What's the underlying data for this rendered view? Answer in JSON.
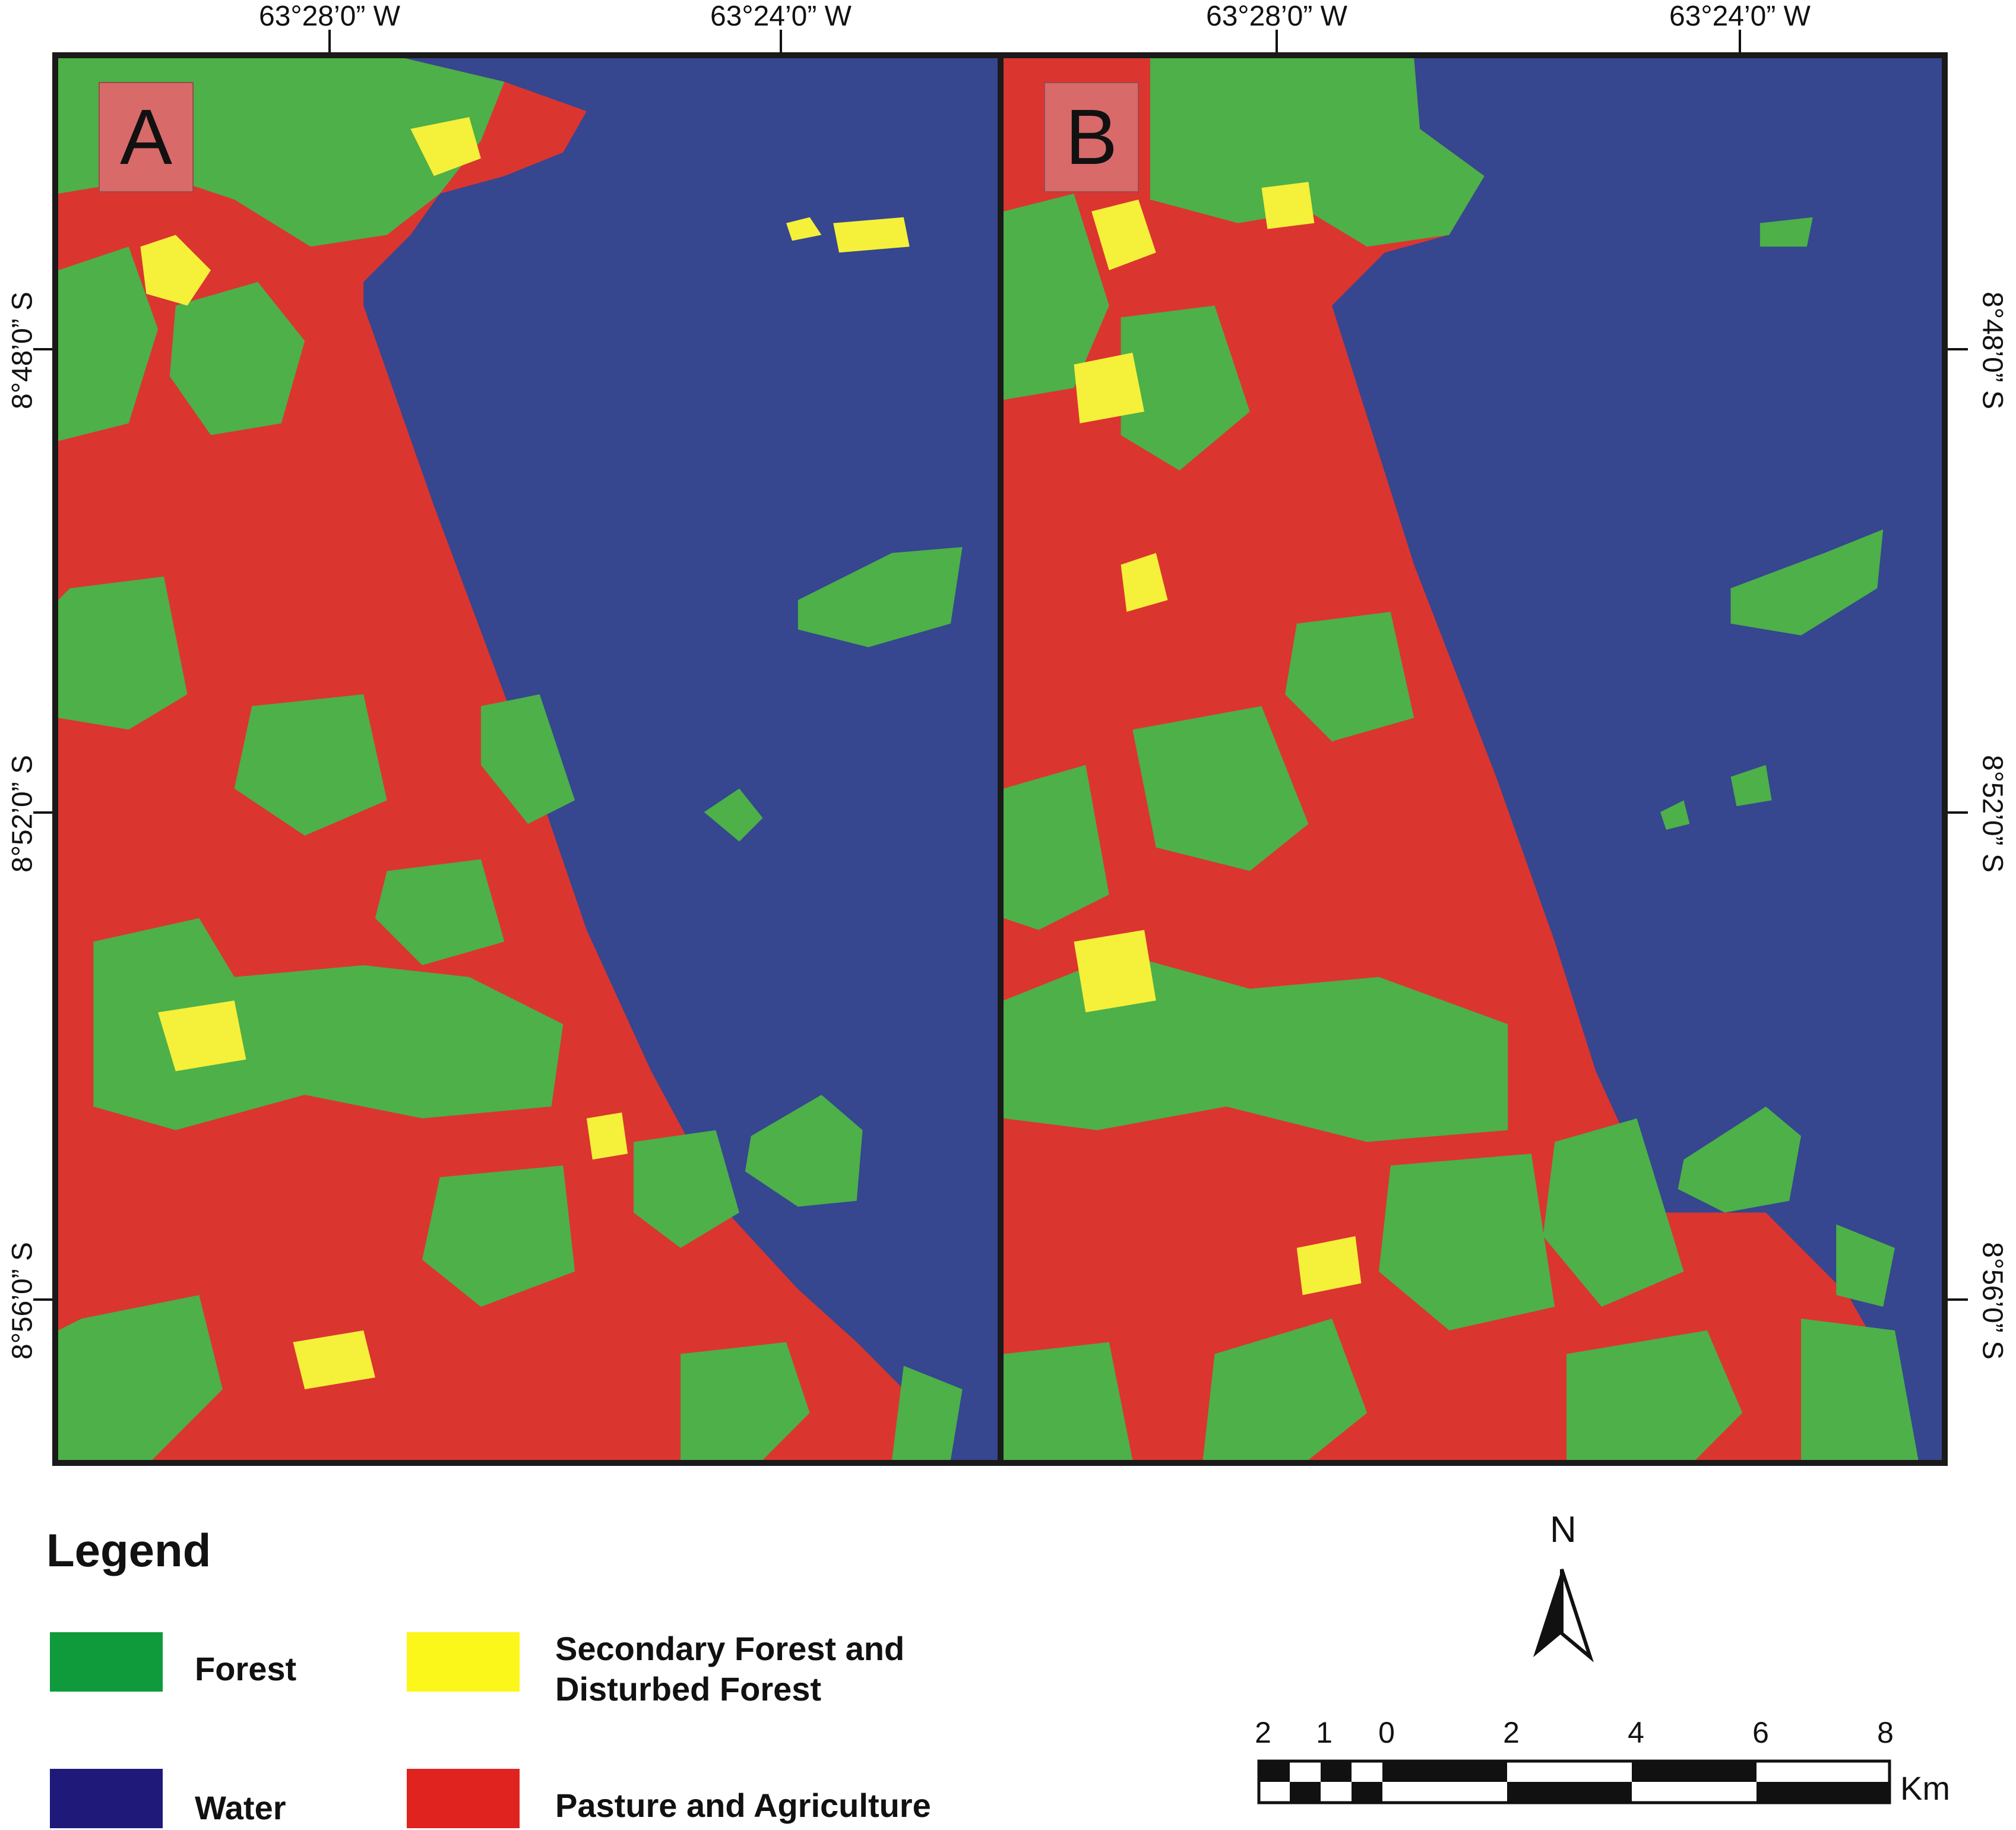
{
  "colors": {
    "forest": "#4db049",
    "water": "#36468f",
    "secondary": "#f5f03a",
    "pasture": "#db3530",
    "legend_forest": "#0f9a3c",
    "legend_water": "#1f1a7a",
    "legend_secondary": "#fbf71a",
    "legend_pasture": "#e0231f"
  },
  "panels": [
    {
      "letter": "A"
    },
    {
      "letter": "B"
    }
  ],
  "top_coords": [
    "63°28’0” W",
    "63°24’0” W",
    "63°28’0” W",
    "63°24’0” W"
  ],
  "left_coords": [
    "8°48’0” S",
    "8°52’0” S",
    "8°56’0” S"
  ],
  "right_coords": [
    "8°48’0” S",
    "8°52’0” S",
    "8°56’0” S"
  ],
  "legend": {
    "title": "Legend",
    "items": [
      {
        "key": "forest",
        "label": "Forest"
      },
      {
        "key": "secondary",
        "label": "Secondary Forest and Disturbed Forest"
      },
      {
        "key": "water",
        "label": "Water"
      },
      {
        "key": "pasture",
        "label": "Pasture and Agriculture"
      }
    ]
  },
  "north_arrow": {
    "label": "N",
    "icon": "north-arrow-icon"
  },
  "scale_bar": {
    "labels": [
      "2",
      "1",
      "0",
      "2",
      "4",
      "6",
      "8"
    ],
    "unit": "Km"
  }
}
